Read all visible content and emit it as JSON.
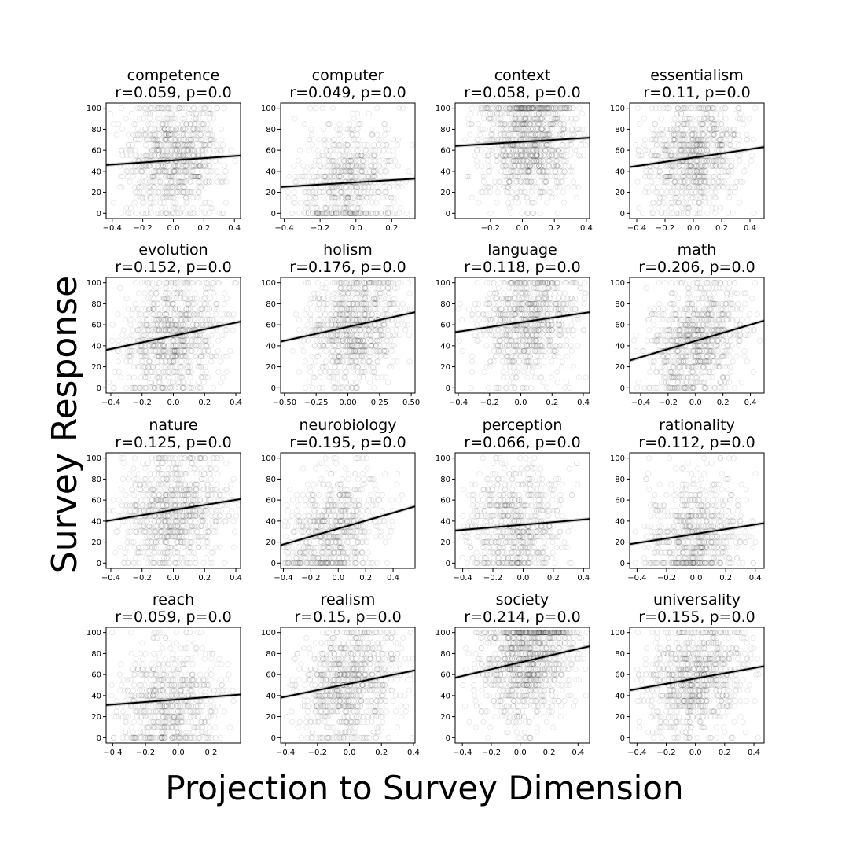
{
  "figure": {
    "xlabel": "Projection to Survey Dimension",
    "ylabel": "Survey Response"
  },
  "chart_data": [
    {
      "type": "scatter",
      "title": "competence",
      "stat": "r=0.059, p=0.0",
      "xlim": [
        -0.44,
        0.44
      ],
      "ylim": [
        -5,
        105
      ],
      "xticks": [
        -0.4,
        -0.2,
        0.0,
        0.2,
        0.4
      ],
      "xtick_labels": [
        "−0.4",
        "−0.2",
        "0.0",
        "0.2",
        "0.4"
      ],
      "yticks": [
        0,
        20,
        40,
        60,
        80,
        100
      ],
      "ytick_labels": [
        "0",
        "20",
        "40",
        "60",
        "80",
        "100"
      ],
      "fit_line": [
        [
          -0.44,
          46
        ],
        [
          0.44,
          55
        ]
      ],
      "point_x_range": [
        -0.42,
        0.42
      ],
      "point_center": 0.0,
      "point_density": "medium"
    },
    {
      "type": "scatter",
      "title": "computer",
      "stat": "r=0.049, p=0.0",
      "xlim": [
        -0.42,
        0.33
      ],
      "ylim": [
        -5,
        105
      ],
      "xticks": [
        -0.4,
        -0.2,
        0.0,
        0.2
      ],
      "xtick_labels": [
        "−0.4",
        "−0.2",
        "0.0",
        "0.2"
      ],
      "yticks": [
        0,
        20,
        40,
        60,
        80,
        100
      ],
      "ytick_labels": [
        "0",
        "20",
        "40",
        "60",
        "80",
        "100"
      ],
      "fit_line": [
        [
          -0.42,
          25
        ],
        [
          0.33,
          33
        ]
      ],
      "point_x_range": [
        -0.4,
        0.32
      ],
      "point_center": -0.05,
      "point_density": "low"
    },
    {
      "type": "scatter",
      "title": "context",
      "stat": "r=0.058, p=0.0",
      "xlim": [
        -0.42,
        0.42
      ],
      "ylim": [
        -5,
        105
      ],
      "xticks": [
        -0.2,
        0.0,
        0.2,
        0.4
      ],
      "xtick_labels": [
        "−0.2",
        "0.0",
        "0.2",
        "0.4"
      ],
      "yticks": [
        0,
        20,
        40,
        60,
        80,
        100
      ],
      "ytick_labels": [
        "0",
        "20",
        "40",
        "60",
        "80",
        "100"
      ],
      "fit_line": [
        [
          -0.42,
          64
        ],
        [
          0.42,
          72
        ]
      ],
      "point_x_range": [
        -0.4,
        0.4
      ],
      "point_center": 0.05,
      "point_density": "high"
    },
    {
      "type": "scatter",
      "title": "essentialism",
      "stat": "r=0.11, p=0.0",
      "xlim": [
        -0.45,
        0.5
      ],
      "ylim": [
        -5,
        105
      ],
      "xticks": [
        -0.4,
        -0.2,
        0.0,
        0.2,
        0.4
      ],
      "xtick_labels": [
        "−0.4",
        "−0.2",
        "0.0",
        "0.2",
        "0.4"
      ],
      "yticks": [
        0,
        20,
        40,
        60,
        80,
        100
      ],
      "ytick_labels": [
        "0",
        "20",
        "40",
        "60",
        "80",
        "100"
      ],
      "fit_line": [
        [
          -0.45,
          44
        ],
        [
          0.5,
          63
        ]
      ],
      "point_x_range": [
        -0.42,
        0.45
      ],
      "point_center": 0.0,
      "point_density": "medium"
    },
    {
      "type": "scatter",
      "title": "evolution",
      "stat": "r=0.152, p=0.0",
      "xlim": [
        -0.43,
        0.43
      ],
      "ylim": [
        -5,
        105
      ],
      "xticks": [
        -0.4,
        -0.2,
        0.0,
        0.2,
        0.4
      ],
      "xtick_labels": [
        "−0.4",
        "−0.2",
        "0.0",
        "0.2",
        "0.4"
      ],
      "yticks": [
        0,
        20,
        40,
        60,
        80,
        100
      ],
      "ytick_labels": [
        "0",
        "20",
        "40",
        "60",
        "80",
        "100"
      ],
      "fit_line": [
        [
          -0.43,
          36
        ],
        [
          0.43,
          63
        ]
      ],
      "point_x_range": [
        -0.42,
        0.42
      ],
      "point_center": 0.0,
      "point_density": "medium"
    },
    {
      "type": "scatter",
      "title": "holism",
      "stat": "r=0.176, p=0.0",
      "xlim": [
        -0.53,
        0.53
      ],
      "ylim": [
        -5,
        105
      ],
      "xticks": [
        -0.5,
        -0.25,
        0.0,
        0.25,
        0.5
      ],
      "xtick_labels": [
        "−0.50",
        "−0.25",
        "0.00",
        "0.25",
        "0.50"
      ],
      "yticks": [
        0,
        20,
        40,
        60,
        80,
        100
      ],
      "ytick_labels": [
        "0",
        "20",
        "40",
        "60",
        "80",
        "100"
      ],
      "fit_line": [
        [
          -0.53,
          44
        ],
        [
          0.53,
          72
        ]
      ],
      "point_x_range": [
        -0.45,
        0.5
      ],
      "point_center": 0.05,
      "point_density": "medium"
    },
    {
      "type": "scatter",
      "title": "language",
      "stat": "r=0.118, p=0.0",
      "xlim": [
        -0.42,
        0.44
      ],
      "ylim": [
        -5,
        105
      ],
      "xticks": [
        -0.4,
        -0.2,
        0.0,
        0.2,
        0.4
      ],
      "xtick_labels": [
        "−0.4",
        "−0.2",
        "0.0",
        "0.2",
        "0.4"
      ],
      "yticks": [
        0,
        20,
        40,
        60,
        80,
        100
      ],
      "ytick_labels": [
        "0",
        "20",
        "40",
        "60",
        "80",
        "100"
      ],
      "fit_line": [
        [
          -0.42,
          53
        ],
        [
          0.44,
          72
        ]
      ],
      "point_x_range": [
        -0.4,
        0.42
      ],
      "point_center": 0.05,
      "point_density": "medium"
    },
    {
      "type": "scatter",
      "title": "math",
      "stat": "r=0.206, p=0.0",
      "xlim": [
        -0.48,
        0.5
      ],
      "ylim": [
        -5,
        105
      ],
      "xticks": [
        -0.4,
        -0.2,
        0.0,
        0.2,
        0.4
      ],
      "xtick_labels": [
        "−0.4",
        "−0.2",
        "0.0",
        "0.2",
        "0.4"
      ],
      "yticks": [
        0,
        20,
        40,
        60,
        80,
        100
      ],
      "ytick_labels": [
        "0",
        "20",
        "40",
        "60",
        "80",
        "100"
      ],
      "fit_line": [
        [
          -0.48,
          26
        ],
        [
          0.5,
          64
        ]
      ],
      "point_x_range": [
        -0.45,
        0.48
      ],
      "point_center": 0.0,
      "point_density": "medium"
    },
    {
      "type": "scatter",
      "title": "nature",
      "stat": "r=0.125, p=0.0",
      "xlim": [
        -0.43,
        0.43
      ],
      "ylim": [
        -5,
        105
      ],
      "xticks": [
        -0.4,
        -0.2,
        0.0,
        0.2,
        0.4
      ],
      "xtick_labels": [
        "−0.4",
        "−0.2",
        "0.0",
        "0.2",
        "0.4"
      ],
      "yticks": [
        0,
        20,
        40,
        60,
        80,
        100
      ],
      "ytick_labels": [
        "0",
        "20",
        "40",
        "60",
        "80",
        "100"
      ],
      "fit_line": [
        [
          -0.43,
          40
        ],
        [
          0.43,
          61
        ]
      ],
      "point_x_range": [
        -0.42,
        0.42
      ],
      "point_center": 0.0,
      "point_density": "medium"
    },
    {
      "type": "scatter",
      "title": "neurobiology",
      "stat": "r=0.195, p=0.0",
      "xlim": [
        -0.42,
        0.56
      ],
      "ylim": [
        -5,
        105
      ],
      "xticks": [
        -0.4,
        -0.2,
        0.0,
        0.2,
        0.4
      ],
      "xtick_labels": [
        "−0.4",
        "−0.2",
        "0.0",
        "0.2",
        "0.4"
      ],
      "yticks": [
        0,
        20,
        40,
        60,
        80,
        100
      ],
      "ytick_labels": [
        "0",
        "20",
        "40",
        "60",
        "80",
        "100"
      ],
      "fit_line": [
        [
          -0.42,
          17
        ],
        [
          0.56,
          54
        ]
      ],
      "point_x_range": [
        -0.4,
        0.5
      ],
      "point_center": -0.05,
      "point_density": "low"
    },
    {
      "type": "scatter",
      "title": "perception",
      "stat": "r=0.066, p=0.0",
      "xlim": [
        -0.45,
        0.44
      ],
      "ylim": [
        -5,
        105
      ],
      "xticks": [
        -0.4,
        -0.2,
        0.0,
        0.2,
        0.4
      ],
      "xtick_labels": [
        "−0.4",
        "−0.2",
        "0.0",
        "0.2",
        "0.4"
      ],
      "yticks": [
        0,
        20,
        40,
        60,
        80,
        100
      ],
      "ytick_labels": [
        "0",
        "20",
        "40",
        "60",
        "80",
        "100"
      ],
      "fit_line": [
        [
          -0.45,
          31
        ],
        [
          0.44,
          42
        ]
      ],
      "point_x_range": [
        -0.42,
        0.42
      ],
      "point_center": -0.05,
      "point_density": "low"
    },
    {
      "type": "scatter",
      "title": "rationality",
      "stat": "r=0.112, p=0.0",
      "xlim": [
        -0.45,
        0.46
      ],
      "ylim": [
        -5,
        105
      ],
      "xticks": [
        -0.4,
        -0.2,
        0.0,
        0.2,
        0.4
      ],
      "xtick_labels": [
        "−0.4",
        "−0.2",
        "0.0",
        "0.2",
        "0.4"
      ],
      "yticks": [
        0,
        20,
        40,
        60,
        80,
        100
      ],
      "ytick_labels": [
        "0",
        "20",
        "40",
        "60",
        "80",
        "100"
      ],
      "fit_line": [
        [
          -0.45,
          18
        ],
        [
          0.46,
          38
        ]
      ],
      "point_x_range": [
        -0.42,
        0.42
      ],
      "point_center": 0.0,
      "point_density": "low"
    },
    {
      "type": "scatter",
      "title": "reach",
      "stat": "r=0.059, p=0.0",
      "xlim": [
        -0.44,
        0.38
      ],
      "ylim": [
        -5,
        105
      ],
      "xticks": [
        -0.4,
        -0.2,
        0.0,
        0.2
      ],
      "xtick_labels": [
        "−0.4",
        "−0.2",
        "0.0",
        "0.2"
      ],
      "yticks": [
        0,
        20,
        40,
        60,
        80,
        100
      ],
      "ytick_labels": [
        "0",
        "20",
        "40",
        "60",
        "80",
        "100"
      ],
      "fit_line": [
        [
          -0.44,
          31
        ],
        [
          0.38,
          41
        ]
      ],
      "point_x_range": [
        -0.42,
        0.36
      ],
      "point_center": -0.05,
      "point_density": "low"
    },
    {
      "type": "scatter",
      "title": "realism",
      "stat": "r=0.15, p=0.0",
      "xlim": [
        -0.43,
        0.41
      ],
      "ylim": [
        -5,
        105
      ],
      "xticks": [
        -0.4,
        -0.2,
        0.0,
        0.2,
        0.4
      ],
      "xtick_labels": [
        "−0.4",
        "−0.2",
        "0.0",
        "0.2",
        "0.4"
      ],
      "yticks": [
        0,
        20,
        40,
        60,
        80,
        100
      ],
      "ytick_labels": [
        "0",
        "20",
        "40",
        "60",
        "80",
        "100"
      ],
      "fit_line": [
        [
          -0.43,
          38
        ],
        [
          0.41,
          64
        ]
      ],
      "point_x_range": [
        -0.4,
        0.4
      ],
      "point_center": 0.0,
      "point_density": "medium"
    },
    {
      "type": "scatter",
      "title": "society",
      "stat": "r=0.214, p=0.0",
      "xlim": [
        -0.45,
        0.48
      ],
      "ylim": [
        -5,
        105
      ],
      "xticks": [
        -0.4,
        -0.2,
        0.0,
        0.2,
        0.4
      ],
      "xtick_labels": [
        "−0.4",
        "−0.2",
        "0.0",
        "0.2",
        "0.4"
      ],
      "yticks": [
        0,
        20,
        40,
        60,
        80,
        100
      ],
      "ytick_labels": [
        "0",
        "20",
        "40",
        "60",
        "80",
        "100"
      ],
      "fit_line": [
        [
          -0.45,
          57
        ],
        [
          0.48,
          87
        ]
      ],
      "point_x_range": [
        -0.42,
        0.46
      ],
      "point_center": 0.05,
      "point_density": "high"
    },
    {
      "type": "scatter",
      "title": "universality",
      "stat": "r=0.155, p=0.0",
      "xlim": [
        -0.45,
        0.47
      ],
      "ylim": [
        -5,
        105
      ],
      "xticks": [
        -0.4,
        -0.2,
        0.0,
        0.2,
        0.4
      ],
      "xtick_labels": [
        "−0.4",
        "−0.2",
        "0.0",
        "0.2",
        "0.4"
      ],
      "yticks": [
        0,
        20,
        40,
        60,
        80,
        100
      ],
      "ytick_labels": [
        "0",
        "20",
        "40",
        "60",
        "80",
        "100"
      ],
      "fit_line": [
        [
          -0.45,
          45
        ],
        [
          0.47,
          68
        ]
      ],
      "point_x_range": [
        -0.42,
        0.45
      ],
      "point_center": 0.0,
      "point_density": "medium"
    }
  ]
}
